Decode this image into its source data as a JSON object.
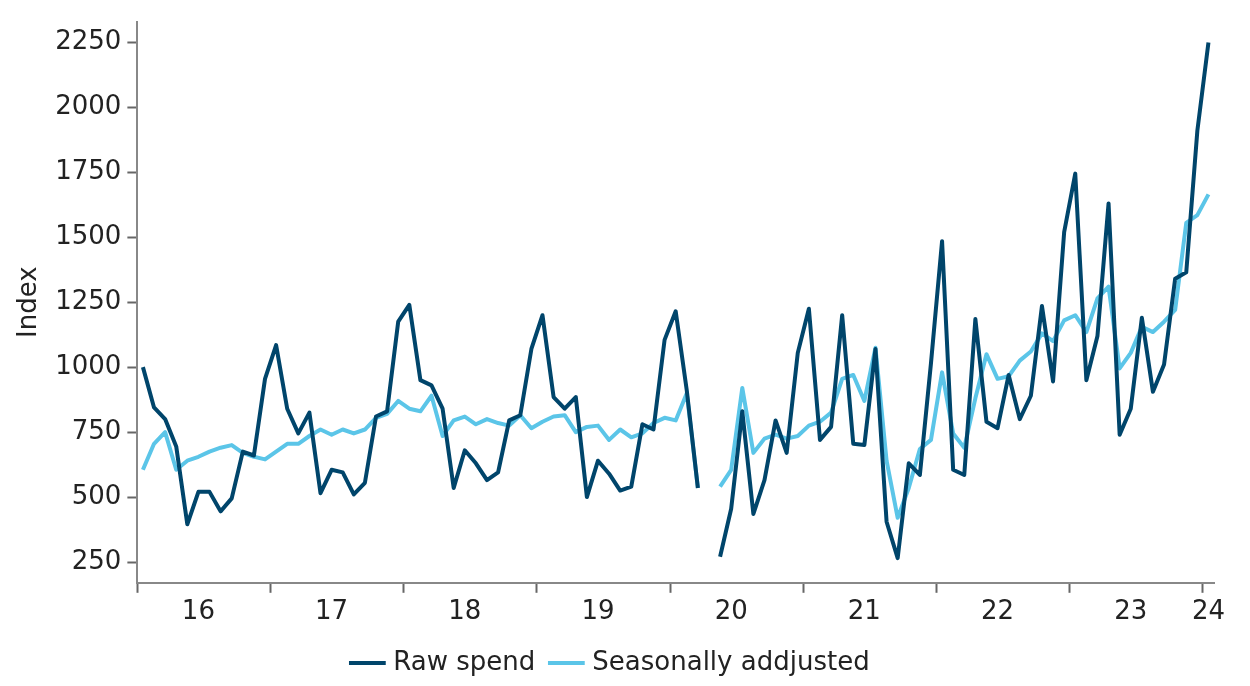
{
  "chart_data": {
    "type": "line",
    "ylabel": "Index",
    "legend": "bottom",
    "grid": false,
    "marker": "none",
    "line_style": "solid",
    "categories": [
      null,
      null,
      null,
      null,
      null,
      "16",
      null,
      null,
      null,
      null,
      null,
      null,
      null,
      null,
      null,
      null,
      null,
      "17",
      null,
      null,
      null,
      null,
      null,
      null,
      null,
      null,
      null,
      null,
      null,
      "18",
      null,
      null,
      null,
      null,
      null,
      null,
      null,
      null,
      null,
      null,
      null,
      "19",
      null,
      null,
      null,
      null,
      null,
      null,
      null,
      null,
      null,
      null,
      null,
      "20",
      null,
      null,
      null,
      null,
      null,
      null,
      null,
      null,
      null,
      null,
      null,
      "21",
      null,
      null,
      null,
      null,
      null,
      null,
      null,
      null,
      null,
      null,
      null,
      "22",
      null,
      null,
      null,
      null,
      null,
      null,
      null,
      null,
      null,
      null,
      null,
      "23",
      null,
      null,
      null,
      null,
      null,
      null,
      "24"
    ],
    "ylim": [
      170,
      2330
    ],
    "yticks": [
      250,
      500,
      750,
      1000,
      1250,
      1500,
      1750,
      2000,
      2250
    ],
    "series": [
      {
        "name": "Raw spend",
        "color": "#00456b",
        "values": [
          1000,
          845,
          800,
          695,
          395,
          520,
          520,
          445,
          495,
          675,
          660,
          955,
          1085,
          840,
          745,
          825,
          515,
          605,
          595,
          510,
          555,
          810,
          830,
          1175,
          1240,
          950,
          930,
          840,
          535,
          680,
          630,
          565,
          595,
          795,
          815,
          1070,
          1200,
          885,
          840,
          885,
          500,
          640,
          590,
          525,
          540,
          780,
          760,
          1105,
          1215,
          910,
          535,
          null,
          270,
          455,
          830,
          435,
          565,
          795,
          670,
          1055,
          1225,
          720,
          770,
          1200,
          705,
          700,
          1070,
          405,
          265,
          630,
          585,
          1015,
          1485,
          605,
          585,
          1185,
          790,
          765,
          970,
          800,
          890,
          1235,
          945,
          1520,
          1745,
          950,
          1120,
          1630,
          740,
          840,
          1190,
          905,
          1010,
          1340,
          1365,
          1910,
          2250
        ]
      },
      {
        "name": "Seasonally addjusted",
        "color": "#5bc5e8",
        "values": [
          605,
          705,
          750,
          605,
          640,
          655,
          675,
          690,
          700,
          670,
          655,
          645,
          675,
          705,
          705,
          735,
          760,
          740,
          760,
          745,
          760,
          805,
          820,
          870,
          840,
          830,
          890,
          735,
          795,
          810,
          780,
          800,
          785,
          775,
          815,
          765,
          790,
          810,
          815,
          750,
          770,
          775,
          720,
          760,
          730,
          745,
          785,
          805,
          795,
          900,
          535,
          null,
          540,
          605,
          920,
          670,
          725,
          740,
          725,
          735,
          775,
          790,
          825,
          955,
          970,
          870,
          1075,
          640,
          420,
          535,
          685,
          720,
          980,
          745,
          690,
          880,
          1050,
          955,
          965,
          1025,
          1060,
          1130,
          1100,
          1180,
          1200,
          1135,
          1265,
          1310,
          995,
          1055,
          1155,
          1135,
          1175,
          1220,
          1555,
          1585,
          1665
        ]
      }
    ]
  }
}
